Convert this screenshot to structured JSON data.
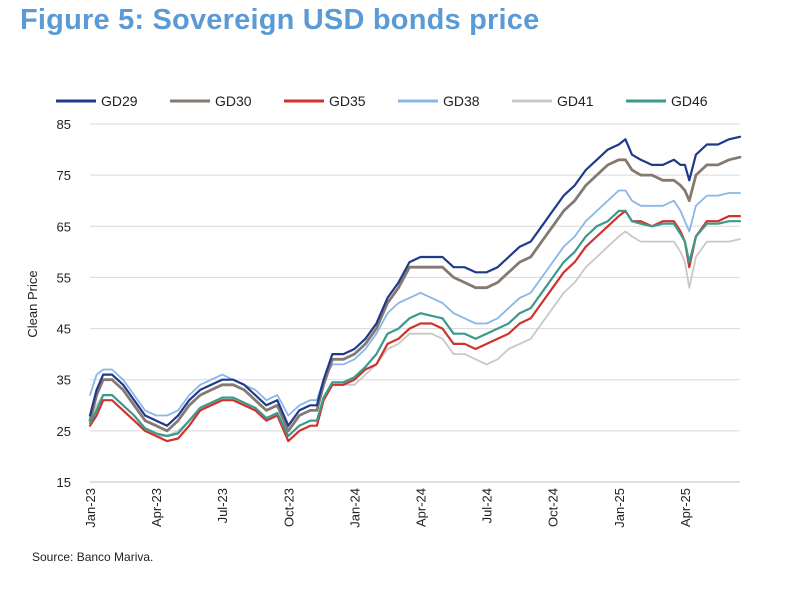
{
  "figure": {
    "title": "Figure 5: Sovereign USD bonds price",
    "source": "Source: Banco Mariva."
  },
  "colors": {
    "title": "#5b9bd5",
    "grid": "#d9d9d9",
    "text": "#222222"
  },
  "chart_data": {
    "type": "line",
    "title": "Figure 5: Sovereign USD bonds price",
    "xlabel": "",
    "ylabel": "Clean Price",
    "ylim": [
      15,
      85
    ],
    "yticks": [
      15,
      25,
      35,
      45,
      55,
      65,
      75,
      85
    ],
    "xlim": [
      0,
      29.5
    ],
    "xticks": [
      {
        "x": 0,
        "label": "Jan-23"
      },
      {
        "x": 3,
        "label": "Apr-23"
      },
      {
        "x": 6,
        "label": "Jul-23"
      },
      {
        "x": 9,
        "label": "Oct-23"
      },
      {
        "x": 12,
        "label": "Jan-24"
      },
      {
        "x": 15,
        "label": "Apr-24"
      },
      {
        "x": 18,
        "label": "Jul-24"
      },
      {
        "x": 21,
        "label": "Oct-24"
      },
      {
        "x": 24,
        "label": "Jan-25"
      },
      {
        "x": 27,
        "label": "Apr-25"
      }
    ],
    "grid": true,
    "legend_position": "top",
    "x": [
      0,
      0.3,
      0.6,
      1,
      1.5,
      2,
      2.5,
      3,
      3.5,
      4,
      4.5,
      5,
      5.5,
      6,
      6.5,
      7,
      7.5,
      8,
      8.5,
      9,
      9.5,
      10,
      10.3,
      10.6,
      11,
      11.5,
      12,
      12.5,
      13,
      13.5,
      14,
      14.5,
      15,
      15.5,
      16,
      16.5,
      17,
      17.5,
      18,
      18.5,
      19,
      19.5,
      20,
      20.5,
      21,
      21.5,
      22,
      22.5,
      23,
      23.5,
      24,
      24.3,
      24.6,
      25,
      25.5,
      26,
      26.5,
      26.8,
      27,
      27.2,
      27.5,
      28,
      28.5,
      29,
      29.5
    ],
    "series": [
      {
        "name": "GD29",
        "color": "#1f3a8a",
        "width": 2.2,
        "values": [
          28,
          33,
          36,
          36,
          34,
          31,
          28,
          27,
          26,
          28,
          31,
          33,
          34,
          35,
          35,
          34,
          32,
          30,
          31,
          26,
          29,
          30,
          30,
          35,
          40,
          40,
          41,
          43,
          46,
          51,
          54,
          58,
          59,
          59,
          59,
          57,
          57,
          56,
          56,
          57,
          59,
          61,
          62,
          65,
          68,
          71,
          73,
          76,
          78,
          80,
          81,
          82,
          79,
          78,
          77,
          77,
          78,
          77,
          77,
          74,
          79,
          81,
          81,
          82,
          82.5
        ]
      },
      {
        "name": "GD30",
        "color": "#857a72",
        "width": 2.8,
        "values": [
          27,
          32,
          35,
          35,
          33,
          30,
          27,
          26,
          25,
          27,
          30,
          32,
          33,
          34,
          34,
          33,
          31,
          29,
          30,
          25,
          28,
          29,
          29,
          34,
          39,
          39,
          40,
          42,
          45,
          50,
          53,
          57,
          57,
          57,
          57,
          55,
          54,
          53,
          53,
          54,
          56,
          58,
          59,
          62,
          65,
          68,
          70,
          73,
          75,
          77,
          78,
          78,
          76,
          75,
          75,
          74,
          74,
          73,
          72,
          70,
          75,
          77,
          77,
          78,
          78.5
        ]
      },
      {
        "name": "GD35",
        "color": "#d0332c",
        "width": 2.2,
        "values": [
          26,
          28,
          31,
          31,
          29,
          27,
          25,
          24,
          23,
          23.5,
          26,
          29,
          30,
          31,
          31,
          30,
          29,
          27,
          28,
          23,
          25,
          26,
          26,
          31,
          34,
          34,
          35,
          37,
          38,
          42,
          43,
          45,
          46,
          46,
          45,
          42,
          42,
          41,
          42,
          43,
          44,
          46,
          47,
          50,
          53,
          56,
          58,
          61,
          63,
          65,
          67,
          68,
          66,
          66,
          65,
          66,
          66,
          64,
          62,
          57,
          63,
          66,
          66,
          67,
          67
        ]
      },
      {
        "name": "GD38",
        "color": "#8ab6e8",
        "width": 1.8,
        "values": [
          32,
          36,
          37,
          37,
          35,
          32,
          29,
          28,
          28,
          29,
          32,
          34,
          35,
          36,
          35,
          34,
          33,
          31,
          32,
          28,
          30,
          31,
          31,
          35,
          38,
          38,
          39,
          41,
          44,
          48,
          50,
          51,
          52,
          51,
          50,
          48,
          47,
          46,
          46,
          47,
          49,
          51,
          52,
          55,
          58,
          61,
          63,
          66,
          68,
          70,
          72,
          72,
          70,
          69,
          69,
          69,
          70,
          68,
          66,
          64,
          69,
          71,
          71,
          71.5,
          71.5
        ]
      },
      {
        "name": "GD41",
        "color": "#c8c8c8",
        "width": 1.8,
        "values": [
          27,
          30,
          32,
          32,
          30,
          28,
          25,
          24,
          24,
          25,
          27,
          29,
          30,
          31,
          31,
          30,
          29,
          27,
          28,
          24,
          26,
          27,
          27,
          31,
          34,
          34,
          34,
          36,
          38,
          41,
          42,
          44,
          44,
          44,
          43,
          40,
          40,
          39,
          38,
          39,
          41,
          42,
          43,
          46,
          49,
          52,
          54,
          57,
          59,
          61,
          63,
          64,
          63,
          62,
          62,
          62,
          62,
          60,
          58,
          53,
          59,
          62,
          62,
          62,
          62.5
        ]
      },
      {
        "name": "GD46",
        "color": "#3a9a8c",
        "width": 2.2,
        "values": [
          26.5,
          29,
          32,
          32,
          30,
          28,
          25.5,
          24.5,
          24,
          24.5,
          27,
          29.5,
          30.5,
          31.5,
          31.5,
          30.5,
          29.5,
          27.5,
          28.5,
          24,
          26,
          27,
          27,
          31.5,
          34.5,
          34.5,
          35.5,
          37.5,
          40,
          44,
          45,
          47,
          48,
          47.5,
          47,
          44,
          44,
          43,
          44,
          45,
          46,
          48,
          49,
          52,
          55,
          58,
          60,
          63,
          65,
          66,
          68,
          68,
          66,
          65.5,
          65,
          65.5,
          65.5,
          63.5,
          62,
          58,
          63,
          65.5,
          65.5,
          66,
          66
        ]
      }
    ]
  }
}
